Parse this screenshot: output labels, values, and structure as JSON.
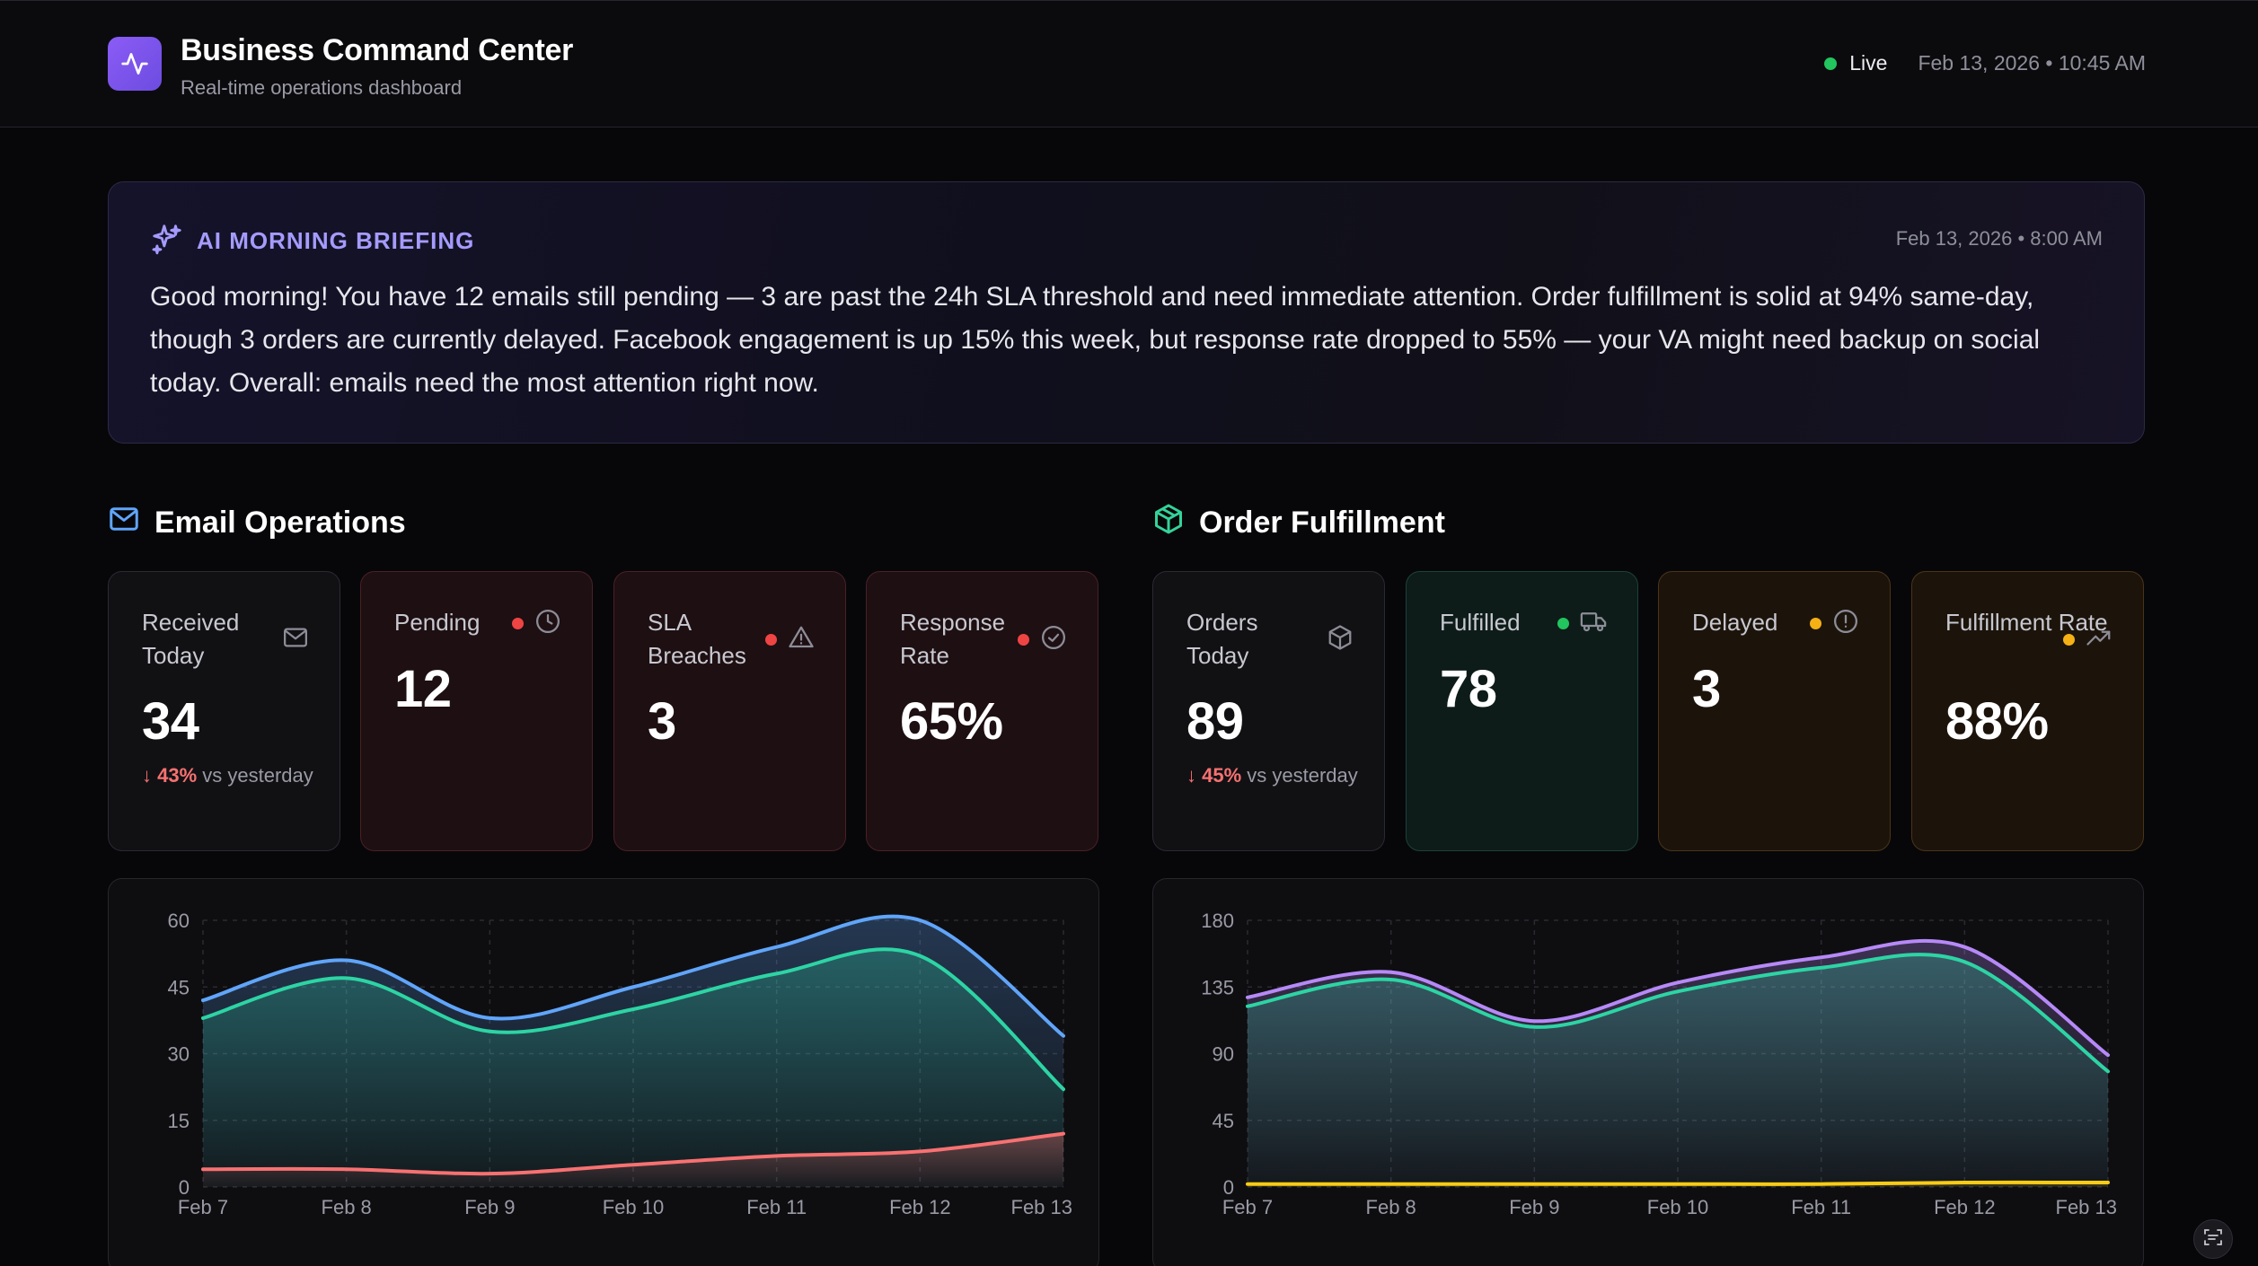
{
  "header": {
    "title": "Business Command Center",
    "subtitle": "Real-time operations dashboard",
    "live_label": "Live",
    "timestamp": "Feb 13, 2026 • 10:45 AM",
    "logo_icon": "activity-icon",
    "live_color": "#22c55e"
  },
  "briefing": {
    "title": "AI MORNING BRIEFING",
    "timestamp": "Feb 13, 2026 • 8:00 AM",
    "text": "Good morning! You have 12 emails still pending — 3 are past the 24h SLA threshold and need immediate attention. Order fulfillment is solid at 94% same-day, though 3 orders are currently delayed. Facebook engagement is up 15% this week, but response rate dropped to 55% — your VA might need backup on social today. Overall: emails need the most attention right now.",
    "icon": "sparkles-icon",
    "accent": "#a59bff"
  },
  "email": {
    "section_title": "Email Operations",
    "icon": "mail-icon",
    "cards": [
      {
        "label": "Received Today",
        "value": "34",
        "delta_pct": "↓ 43%",
        "delta_text": "vs yesterday",
        "icon": "mail-icon"
      },
      {
        "label": "Pending",
        "value": "12",
        "icon": "clock-icon",
        "dot": "#ef4444"
      },
      {
        "label": "SLA Breaches",
        "value": "3",
        "icon": "alert-triangle-icon",
        "dot": "#ef4444"
      },
      {
        "label": "Response Rate",
        "value": "65%",
        "icon": "check-circle-icon",
        "dot": "#ef4444"
      }
    ]
  },
  "orders": {
    "section_title": "Order Fulfillment",
    "icon": "package-icon",
    "cards": [
      {
        "label": "Orders Today",
        "value": "89",
        "delta_pct": "↓ 45%",
        "delta_text": "vs yesterday",
        "icon": "package-icon"
      },
      {
        "label": "Fulfilled",
        "value": "78",
        "icon": "truck-icon",
        "dot": "#22c55e"
      },
      {
        "label": "Delayed",
        "value": "3",
        "icon": "alert-circle-icon",
        "dot": "#f5b016"
      },
      {
        "label": "Fulfillment Rate",
        "value": "88%",
        "icon": "trending-up-icon",
        "dot": "#f5b016"
      }
    ]
  },
  "chart_data": [
    {
      "type": "area",
      "title": "",
      "x": [
        "Feb 7",
        "Feb 8",
        "Feb 9",
        "Feb 10",
        "Feb 11",
        "Feb 12",
        "Feb 13"
      ],
      "ylim": [
        0,
        60
      ],
      "yticks": [
        0,
        15,
        30,
        45,
        60
      ],
      "grid": true,
      "series": [
        {
          "values": [
            42,
            51,
            38,
            45,
            54,
            60,
            34
          ],
          "color": "#60a5fa"
        },
        {
          "values": [
            38,
            47,
            35,
            40,
            48,
            52,
            22
          ],
          "color": "#2dd4a4"
        },
        {
          "values": [
            4,
            4,
            3,
            5,
            7,
            8,
            12
          ],
          "color": "#f87171"
        }
      ]
    },
    {
      "type": "area",
      "title": "",
      "x": [
        "Feb 7",
        "Feb 8",
        "Feb 9",
        "Feb 10",
        "Feb 11",
        "Feb 12",
        "Feb 13"
      ],
      "ylim": [
        0,
        180
      ],
      "yticks": [
        0,
        45,
        90,
        135,
        180
      ],
      "grid": true,
      "series": [
        {
          "values": [
            128,
            145,
            112,
            138,
            155,
            162,
            89
          ],
          "color": "#b689f7"
        },
        {
          "values": [
            122,
            140,
            108,
            132,
            148,
            152,
            78
          ],
          "color": "#2dd4a4"
        },
        {
          "values": [
            2,
            2,
            2,
            2,
            2,
            3,
            3
          ],
          "color": "#facc15"
        }
      ]
    }
  ]
}
